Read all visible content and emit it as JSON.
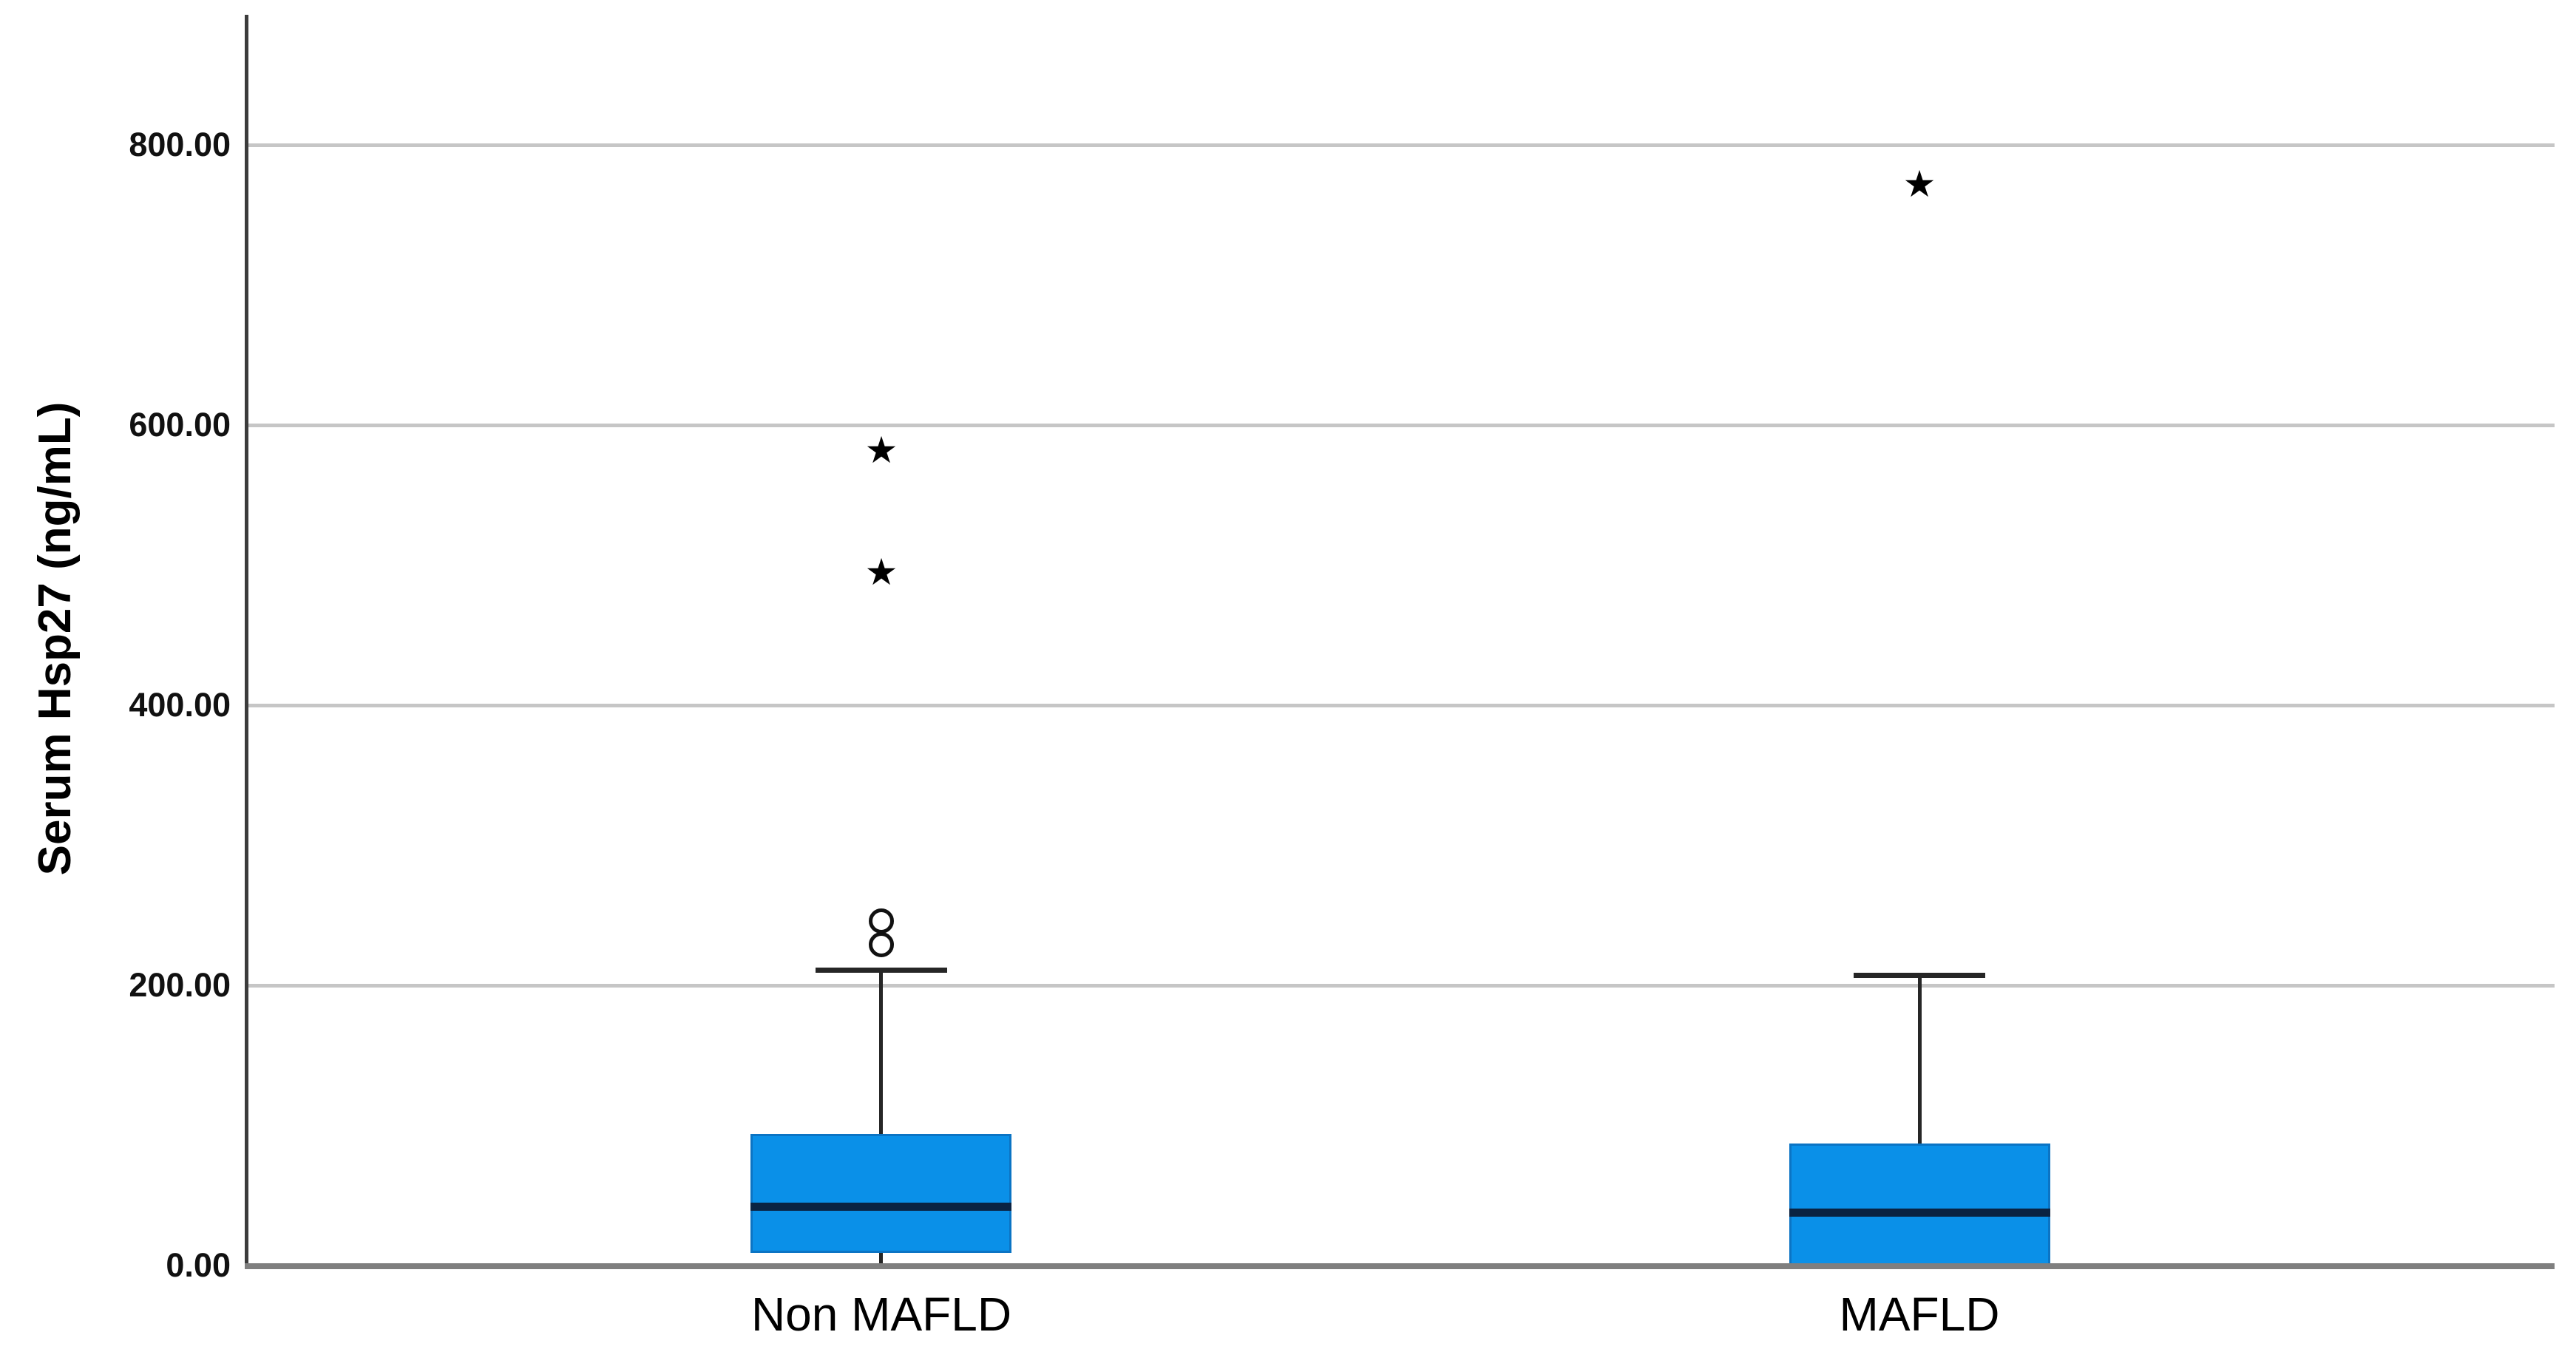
{
  "chart_data": {
    "type": "boxplot",
    "title": "",
    "xlabel": "",
    "ylabel": "Serum Hsp27 (ng/mL)",
    "ylim": [
      0,
      893
    ],
    "grid": "horizontal-only",
    "legend": null,
    "yticks": [
      {
        "value": 0,
        "label": "0.00"
      },
      {
        "value": 200,
        "label": "200.00"
      },
      {
        "value": 400,
        "label": "400.00"
      },
      {
        "value": 600,
        "label": "600.00"
      },
      {
        "value": 800,
        "label": "800.00"
      }
    ],
    "categories": [
      "Non MAFLD",
      "MAFLD"
    ],
    "groups": [
      {
        "label": "Non MAFLD",
        "whisker_low": 0,
        "q1": 9,
        "median": 42,
        "q3": 94,
        "whisker_high": 211,
        "outliers_circle": [
          229,
          246
        ],
        "outliers_extreme": [
          495,
          582
        ]
      },
      {
        "label": "MAFLD",
        "whisker_low": 0,
        "q1": 0,
        "median": 38,
        "q3": 87,
        "whisker_high": 207,
        "outliers_circle": [],
        "outliers_extreme": [
          772
        ]
      }
    ]
  },
  "marks": {
    "extreme_marker_glyph": "★",
    "circle_marker_name": "open-circle"
  },
  "colors": {
    "background": "#ffffff",
    "box_fill": "#0a90e8",
    "box_border": "#0b74c4",
    "median": "#0a2342",
    "whisker": "#262626",
    "gridline": "#c6c6c6",
    "y_axis": "#3c3c3c",
    "x_axis": "#7f7f7f",
    "text": "#111111"
  }
}
